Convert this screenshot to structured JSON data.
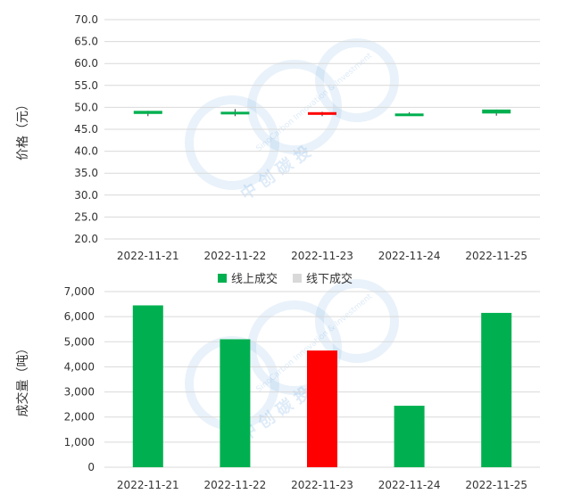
{
  "watermark": {
    "ring_text": "SinoCarbon Innovation & Investment",
    "cn_text": "中 创 碳 投"
  },
  "chart_data": [
    {
      "type": "candlestick",
      "ylabel": "价格（元）",
      "ylim": [
        20.0,
        70.0
      ],
      "yticks": [
        "20.0",
        "25.0",
        "30.0",
        "35.0",
        "40.0",
        "45.0",
        "50.0",
        "55.0",
        "60.0",
        "65.0",
        "70.0"
      ],
      "categories": [
        "2022-11-21",
        "2022-11-22",
        "2022-11-23",
        "2022-11-24",
        "2022-11-25"
      ],
      "candles": [
        {
          "open": 48.5,
          "close": 49.2,
          "low": 48.0,
          "high": 49.2,
          "color": "#00b050"
        },
        {
          "open": 48.5,
          "close": 49.0,
          "low": 48.0,
          "high": 49.6,
          "color": "#00b050"
        },
        {
          "open": 48.9,
          "close": 48.3,
          "low": 48.0,
          "high": 49.0,
          "color": "#ff0000"
        },
        {
          "open": 48.3,
          "close": 48.6,
          "low": 48.1,
          "high": 48.9,
          "color": "#00b050"
        },
        {
          "open": 48.6,
          "close": 49.5,
          "low": 48.1,
          "high": 49.5,
          "color": "#00b050"
        }
      ],
      "grid": true
    },
    {
      "type": "bar",
      "ylabel": "成交量（吨）",
      "ylim": [
        0,
        7000
      ],
      "yticks": [
        "0",
        "1,000",
        "2,000",
        "3,000",
        "4,000",
        "5,000",
        "6,000",
        "7,000"
      ],
      "categories": [
        "2022-11-21",
        "2022-11-22",
        "2022-11-23",
        "2022-11-24",
        "2022-11-25"
      ],
      "series": [
        {
          "name": "线上成交",
          "color": "#00b050",
          "values": [
            6450,
            5100,
            4650,
            2450,
            6150
          ],
          "bar_colors": [
            "#00b050",
            "#00b050",
            "#ff0000",
            "#00b050",
            "#00b050"
          ]
        },
        {
          "name": "线下成交",
          "color": "#d9d9d9",
          "values": [
            0,
            0,
            0,
            0,
            0
          ]
        }
      ],
      "legend": "top-center",
      "grid": true
    }
  ]
}
